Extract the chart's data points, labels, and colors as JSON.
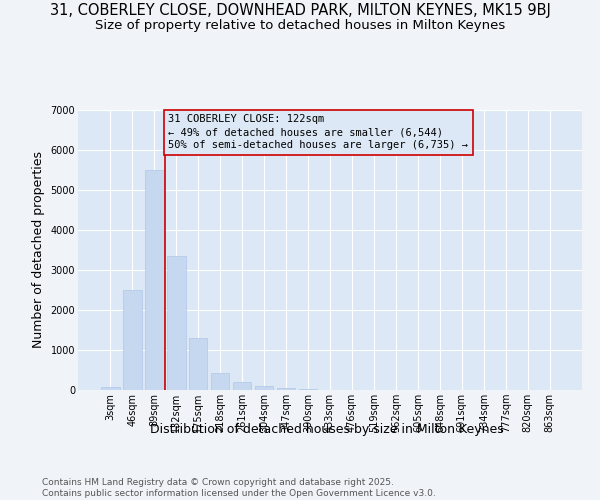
{
  "title_line1": "31, COBERLEY CLOSE, DOWNHEAD PARK, MILTON KEYNES, MK15 9BJ",
  "title_line2": "Size of property relative to detached houses in Milton Keynes",
  "xlabel": "Distribution of detached houses by size in Milton Keynes",
  "ylabel": "Number of detached properties",
  "categories": [
    "3sqm",
    "46sqm",
    "89sqm",
    "132sqm",
    "175sqm",
    "218sqm",
    "261sqm",
    "304sqm",
    "347sqm",
    "390sqm",
    "433sqm",
    "476sqm",
    "519sqm",
    "562sqm",
    "605sqm",
    "648sqm",
    "691sqm",
    "734sqm",
    "777sqm",
    "820sqm",
    "863sqm"
  ],
  "values": [
    80,
    2500,
    5500,
    3350,
    1300,
    430,
    210,
    100,
    50,
    30,
    0,
    0,
    0,
    0,
    0,
    0,
    0,
    0,
    0,
    0,
    0
  ],
  "bar_color": "#c5d8f0",
  "bar_edgecolor": "#b0c8e8",
  "vline_color": "#cc0000",
  "annotation_text": "31 COBERLEY CLOSE: 122sqm\n← 49% of detached houses are smaller (6,544)\n50% of semi-detached houses are larger (6,735) →",
  "annotation_box_edgecolor": "#cc0000",
  "ylim": [
    0,
    7000
  ],
  "yticks": [
    0,
    1000,
    2000,
    3000,
    4000,
    5000,
    6000,
    7000
  ],
  "plot_bg_color": "#dce8f5",
  "fig_bg_color": "#f0f4f8",
  "footer_text": "Contains HM Land Registry data © Crown copyright and database right 2025.\nContains public sector information licensed under the Open Government Licence v3.0.",
  "title_fontsize": 10.5,
  "subtitle_fontsize": 9.5,
  "axis_label_fontsize": 9,
  "tick_fontsize": 7,
  "annotation_fontsize": 7.5,
  "footer_fontsize": 6.5,
  "vline_pos": 2.5
}
